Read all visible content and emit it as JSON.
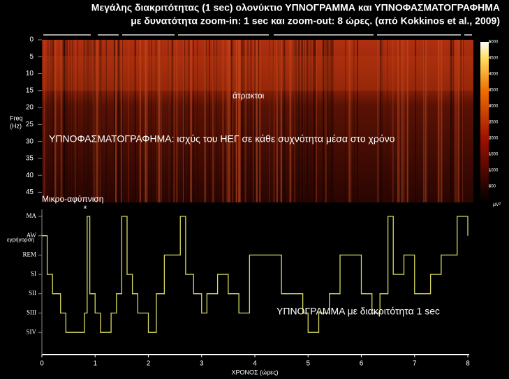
{
  "title": [
    "Μεγάλης διακριτότητας (1 sec) ολονύκτιο ΥΠΝΟΓΡΑΜΜΑ και ΥΠΝΟΦΑΣΜΑΤΟΓΡΑΦΗΜΑ",
    "με δυνατότητα zoom-in: 1 sec  και zoom-out: 8 ώρες. (από Kokkinos et al., 2009)"
  ],
  "chart_data": [
    {
      "type": "heatmap",
      "y_label": [
        "Freq",
        "(Hz)"
      ],
      "ylim": [
        0,
        48
      ],
      "yticks": [
        0,
        5,
        10,
        15,
        20,
        25,
        30,
        35,
        40,
        45
      ],
      "colorbar": {
        "lim": [
          0,
          5000
        ],
        "ticks": [
          500,
          1000,
          1500,
          2000,
          2500,
          3000,
          3500,
          4000,
          4500,
          5000
        ],
        "unit": "μV²"
      },
      "annotations": [
        "άτρακτοι",
        "ΥΠΝΟΦΑΣΜΑΤΟΓΡΑΦΗΜΑ: ισχύς του ΗΕΓ σε κάθε συχνότητα μέσα στο χρόνο"
      ]
    },
    {
      "type": "line",
      "x_label": "ΧΡΟΝΟΣ (ώρες)",
      "xlim": [
        0,
        8
      ],
      "xticks": [
        0,
        1,
        2,
        3,
        4,
        5,
        6,
        7,
        8
      ],
      "y_categories": [
        "MA",
        "AW",
        "REM",
        "SI",
        "SII",
        "SIII",
        "SIV"
      ],
      "color": "#d8d860",
      "x": [
        0,
        0.1,
        0.2,
        0.35,
        0.45,
        0.8,
        0.85,
        0.9,
        1.0,
        1.1,
        1.3,
        1.4,
        1.5,
        1.6,
        1.7,
        1.8,
        2.0,
        2.15,
        2.3,
        2.6,
        2.7,
        2.85,
        3.0,
        3.1,
        3.3,
        3.5,
        3.7,
        3.9,
        4.5,
        4.9,
        5.0,
        5.2,
        5.4,
        5.6,
        6.0,
        6.2,
        6.35,
        6.5,
        6.6,
        6.8,
        7.0,
        7.3,
        7.5,
        7.8,
        8.0
      ],
      "values": [
        "AW",
        "SI",
        "SII",
        "SIII",
        "SIV",
        "SIII",
        "MA",
        "SII",
        "SIII",
        "SIV",
        "SIII",
        "SII",
        "MA",
        "SI",
        "SII",
        "SIII",
        "SIV",
        "SII",
        "REM",
        "MA",
        "SI",
        "SII",
        "SIII",
        "SII",
        "SI",
        "SII",
        "SIII",
        "REM",
        "SII",
        "SIII",
        "SIV",
        "SIII",
        "SII",
        "REM",
        "SII",
        "SIII",
        "SII",
        "MA",
        "SI",
        "REM",
        "SII",
        "SI",
        "REM",
        "MA",
        "AW"
      ],
      "annotations": [
        "Μικρο-αφύπνιση",
        "*",
        "εγρήγορση",
        "ΥΠΝΟΓΡΑΜΜΑ με διακριτότητα 1 sec"
      ]
    }
  ]
}
